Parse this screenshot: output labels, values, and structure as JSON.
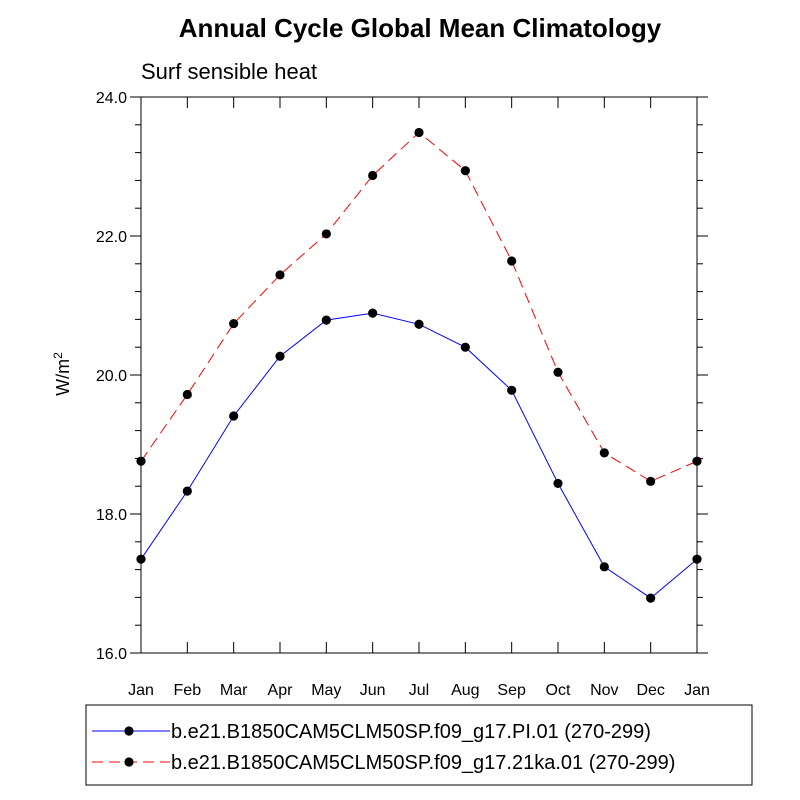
{
  "chart_data": {
    "type": "line",
    "title": "Annual Cycle Global Mean Climatology",
    "subtitle": "Surf sensible heat",
    "ylabel": "W/m",
    "ylabel_sup": "2",
    "xlabel": "",
    "categories": [
      "Jan",
      "Feb",
      "Mar",
      "Apr",
      "May",
      "Jun",
      "Jul",
      "Aug",
      "Sep",
      "Oct",
      "Nov",
      "Dec",
      "Jan"
    ],
    "ylim": [
      16.0,
      24.0
    ],
    "yticks": [
      "16.0",
      "18.0",
      "20.0",
      "22.0",
      "24.0"
    ],
    "grid": false,
    "legend_position": "bottom",
    "series": [
      {
        "name": "b.e21.B1850CAM5CLM50SP.f09_g17.PI.01 (270-299)",
        "color": "#0000ff",
        "dash": "solid",
        "values": [
          17.35,
          18.33,
          19.41,
          20.27,
          20.79,
          20.89,
          20.73,
          20.4,
          19.78,
          18.44,
          17.24,
          16.79,
          17.35
        ]
      },
      {
        "name": "b.e21.B1850CAM5CLM50SP.f09_g17.21ka.01 (270-299)",
        "color": "#ff0000",
        "dash": "dashed",
        "values": [
          18.76,
          19.72,
          20.74,
          21.44,
          22.03,
          22.87,
          23.49,
          22.94,
          21.64,
          20.04,
          18.88,
          18.47,
          18.76
        ]
      }
    ]
  }
}
